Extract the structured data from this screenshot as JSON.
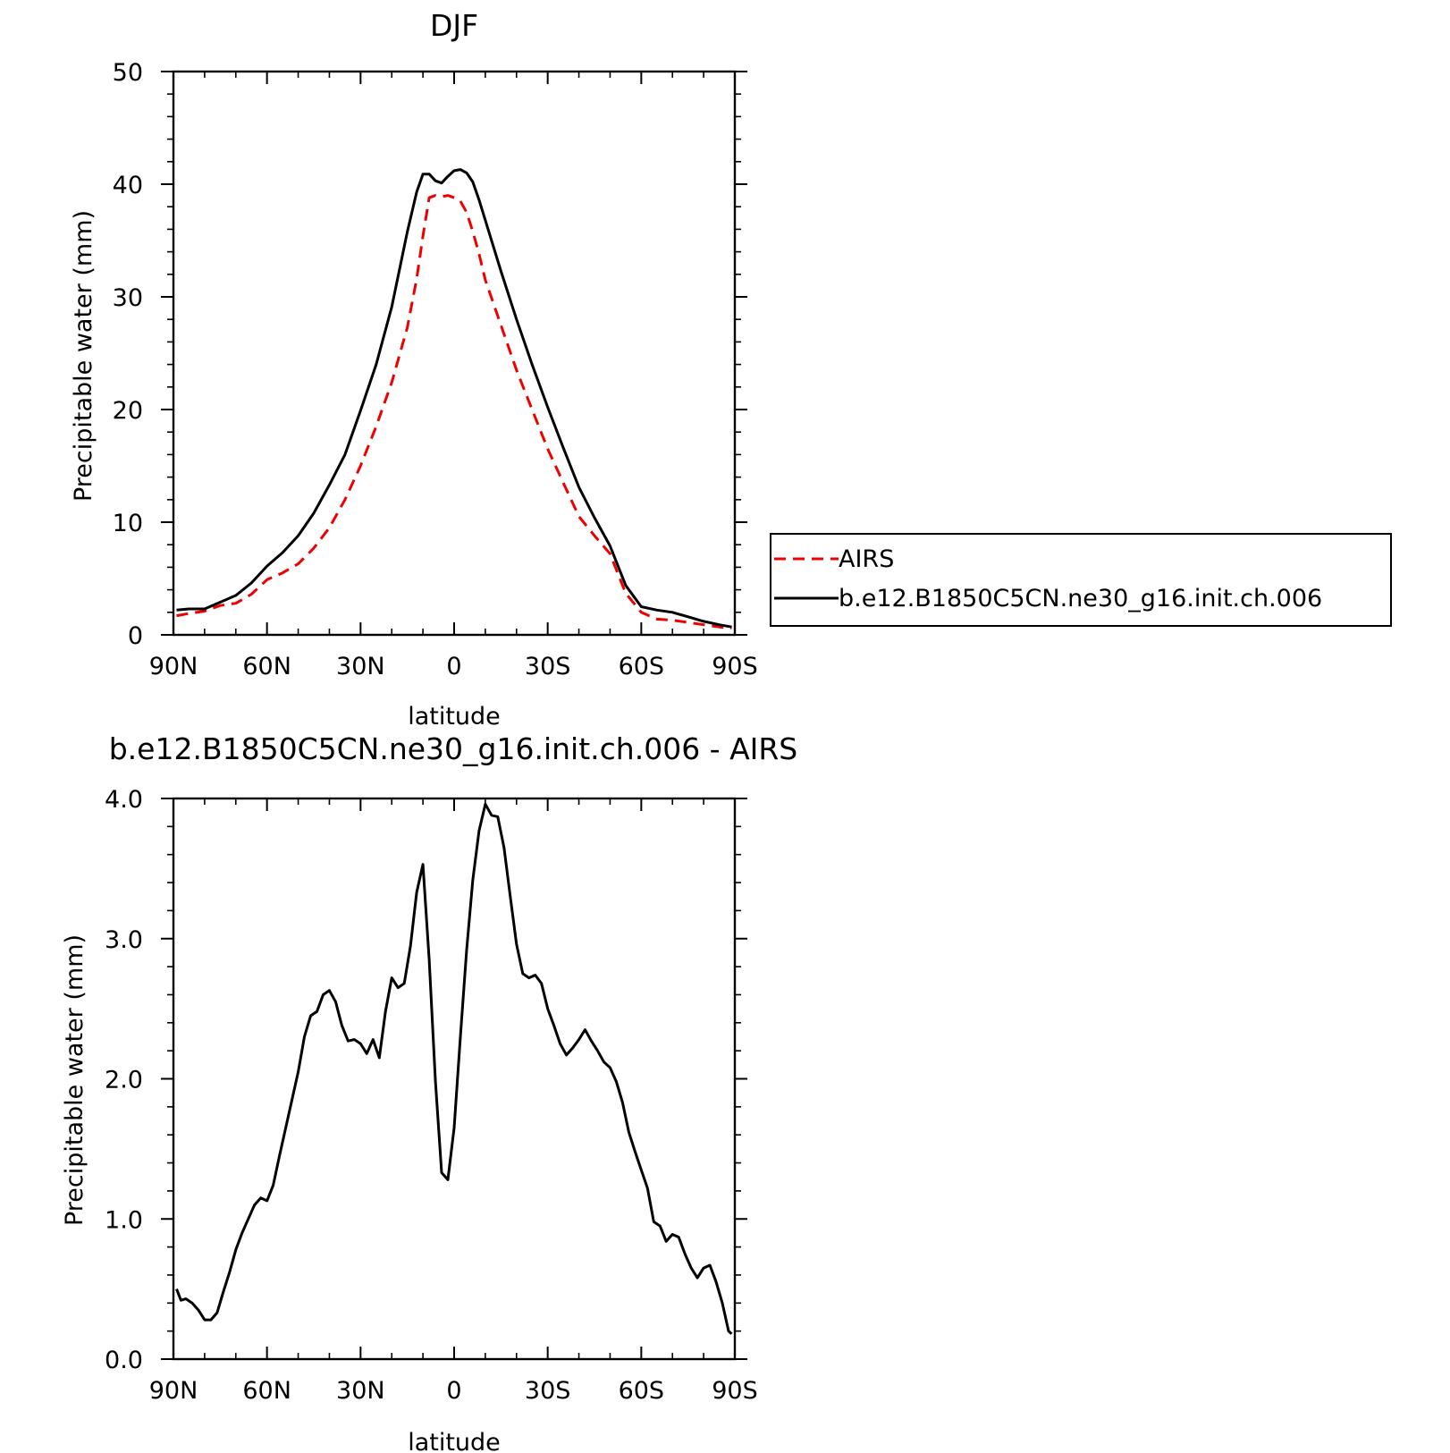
{
  "chart_data": [
    {
      "type": "line",
      "title": "DJF",
      "xlabel": "latitude",
      "ylabel": "Precipitable water (mm)",
      "xlim": [
        90,
        -90
      ],
      "ylim": [
        0,
        50
      ],
      "x_tick_values": [
        90,
        60,
        30,
        0,
        -30,
        -60,
        -90
      ],
      "x_tick_labels": [
        "90N",
        "60N",
        "30N",
        "0",
        "30S",
        "60S",
        "90S"
      ],
      "y_tick_values": [
        0,
        10,
        20,
        30,
        40,
        50
      ],
      "y_tick_labels": [
        "0",
        "10",
        "20",
        "30",
        "40",
        "50"
      ],
      "legend_position": "right",
      "series": [
        {
          "name": "AIRS",
          "color": "#ee0000",
          "dash": "dashed",
          "x": [
            89,
            85,
            80,
            75,
            70,
            65,
            60,
            55,
            50,
            45,
            40,
            35,
            30,
            25,
            20,
            15,
            12,
            10,
            8,
            6,
            4,
            2,
            0,
            -2,
            -4,
            -6,
            -8,
            -10,
            -15,
            -20,
            -25,
            -30,
            -35,
            -40,
            -45,
            -50,
            -55,
            -60,
            -65,
            -70,
            -75,
            -80,
            -85,
            -89
          ],
          "y": [
            1.7,
            1.9,
            2.1,
            2.6,
            2.8,
            3.6,
            4.9,
            5.5,
            6.3,
            7.7,
            9.5,
            12.0,
            15.0,
            18.5,
            22.4,
            27.3,
            31.6,
            35.4,
            38.8,
            39.0,
            38.9,
            39.0,
            38.8,
            38.5,
            37.5,
            35.8,
            33.8,
            31.5,
            27.5,
            23.5,
            20.0,
            16.5,
            13.5,
            10.5,
            8.8,
            7.2,
            3.7,
            2.0,
            1.4,
            1.3,
            1.1,
            0.9,
            0.7,
            0.6
          ]
        },
        {
          "name": "b.e12.B1850C5CN.ne30_g16.init.ch.006",
          "color": "#000000",
          "dash": "solid",
          "x": [
            89,
            85,
            80,
            75,
            70,
            65,
            60,
            55,
            50,
            45,
            40,
            35,
            30,
            25,
            20,
            15,
            12,
            10,
            8,
            6,
            4,
            2,
            0,
            -2,
            -4,
            -6,
            -8,
            -10,
            -15,
            -20,
            -25,
            -30,
            -35,
            -40,
            -45,
            -50,
            -55,
            -60,
            -65,
            -70,
            -75,
            -80,
            -85,
            -89
          ],
          "y": [
            2.2,
            2.3,
            2.3,
            2.9,
            3.5,
            4.6,
            6.1,
            7.3,
            8.8,
            10.8,
            13.3,
            16.0,
            19.9,
            24.0,
            29.1,
            35.8,
            39.3,
            40.9,
            40.9,
            40.3,
            40.1,
            40.7,
            41.2,
            41.3,
            41.0,
            40.2,
            38.6,
            36.8,
            32.3,
            28.0,
            24.0,
            20.2,
            16.6,
            13.1,
            10.4,
            7.9,
            4.4,
            2.5,
            2.2,
            2.0,
            1.6,
            1.2,
            0.9,
            0.7
          ]
        }
      ]
    },
    {
      "type": "line",
      "title": "b.e12.B1850C5CN.ne30_g16.init.ch.006 - AIRS",
      "xlabel": "latitude",
      "ylabel": "Precipitable water (mm)",
      "xlim": [
        90,
        -90
      ],
      "ylim": [
        0,
        4
      ],
      "x_tick_values": [
        90,
        60,
        30,
        0,
        -30,
        -60,
        -90
      ],
      "x_tick_labels": [
        "90N",
        "60N",
        "30N",
        "0",
        "30S",
        "60S",
        "90S"
      ],
      "y_tick_values": [
        0,
        1,
        2,
        3,
        4
      ],
      "y_tick_labels": [
        "0.0",
        "1.0",
        "2.0",
        "3.0",
        "4.0"
      ],
      "series": [
        {
          "color": "#000000",
          "dash": "solid",
          "x": [
            89,
            87.6,
            86,
            84,
            82,
            80,
            78,
            76,
            74,
            72,
            70,
            68,
            66,
            64,
            62,
            60,
            58,
            56,
            54,
            52,
            50,
            48,
            46,
            44,
            42,
            40,
            38,
            36,
            34,
            32,
            30,
            28,
            26,
            24,
            22,
            20,
            18,
            16,
            14,
            12,
            10,
            8,
            6,
            4,
            2,
            0,
            -2,
            -4,
            -6,
            -8,
            -10,
            -12,
            -14,
            -16,
            -18,
            -20,
            -22,
            -24,
            -26,
            -28,
            -30,
            -32,
            -34,
            -36,
            -38,
            -40,
            -42,
            -44,
            -46,
            -48,
            -50,
            -52,
            -54,
            -56,
            -58,
            -60,
            -62,
            -64,
            -66,
            -68,
            -70,
            -72,
            -74,
            -76,
            -78,
            -80,
            -82,
            -84,
            -86,
            -88,
            -89
          ],
          "y": [
            0.5,
            0.42,
            0.43,
            0.4,
            0.35,
            0.28,
            0.28,
            0.33,
            0.48,
            0.62,
            0.78,
            0.9,
            1.0,
            1.1,
            1.15,
            1.13,
            1.24,
            1.45,
            1.65,
            1.85,
            2.05,
            2.3,
            2.45,
            2.48,
            2.6,
            2.63,
            2.55,
            2.38,
            2.27,
            2.28,
            2.25,
            2.18,
            2.28,
            2.15,
            2.48,
            2.72,
            2.65,
            2.68,
            2.95,
            3.33,
            3.53,
            2.85,
            1.98,
            1.33,
            1.28,
            1.65,
            2.3,
            2.92,
            3.42,
            3.77,
            3.96,
            3.88,
            3.87,
            3.65,
            3.3,
            2.96,
            2.75,
            2.72,
            2.74,
            2.68,
            2.5,
            2.38,
            2.25,
            2.17,
            2.22,
            2.28,
            2.35,
            2.27,
            2.2,
            2.12,
            2.08,
            1.98,
            1.83,
            1.62,
            1.48,
            1.35,
            1.22,
            0.98,
            0.95,
            0.84,
            0.89,
            0.87,
            0.75,
            0.65,
            0.58,
            0.65,
            0.67,
            0.55,
            0.4,
            0.2,
            0.18
          ]
        }
      ]
    }
  ]
}
